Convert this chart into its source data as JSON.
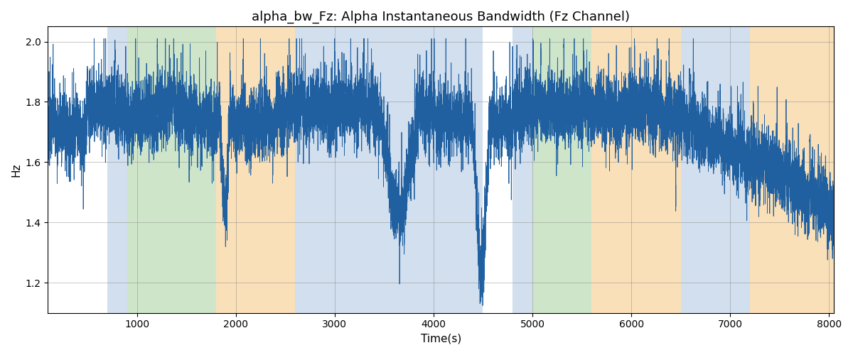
{
  "title": "alpha_bw_Fz: Alpha Instantaneous Bandwidth (Fz Channel)",
  "xlabel": "Time(s)",
  "ylabel": "Hz",
  "xlim": [
    100,
    8050
  ],
  "ylim": [
    1.1,
    2.05
  ],
  "line_color": "#2060a0",
  "line_width": 0.6,
  "background_regions": [
    {
      "xmin": 700,
      "xmax": 900,
      "color": "#aec6e0",
      "alpha": 0.55
    },
    {
      "xmin": 900,
      "xmax": 1800,
      "color": "#a8d0a0",
      "alpha": 0.55
    },
    {
      "xmin": 1800,
      "xmax": 2600,
      "color": "#f5c880",
      "alpha": 0.55
    },
    {
      "xmin": 2600,
      "xmax": 4500,
      "color": "#aec6e0",
      "alpha": 0.55
    },
    {
      "xmin": 4800,
      "xmax": 5000,
      "color": "#aec6e0",
      "alpha": 0.55
    },
    {
      "xmin": 5000,
      "xmax": 5600,
      "color": "#a8d0a0",
      "alpha": 0.55
    },
    {
      "xmin": 5600,
      "xmax": 6500,
      "color": "#f5c880",
      "alpha": 0.55
    },
    {
      "xmin": 6500,
      "xmax": 7200,
      "color": "#aec6e0",
      "alpha": 0.55
    },
    {
      "xmin": 7200,
      "xmax": 8100,
      "color": "#f5c880",
      "alpha": 0.55
    }
  ],
  "title_fontsize": 13,
  "label_fontsize": 11,
  "tick_fontsize": 10,
  "xticks": [
    1000,
    2000,
    3000,
    4000,
    5000,
    6000,
    7000,
    8000
  ],
  "yticks": [
    1.2,
    1.4,
    1.6,
    1.8,
    2.0
  ],
  "seed": 7,
  "n_points": 16000,
  "x_start": 100,
  "x_end": 8050
}
